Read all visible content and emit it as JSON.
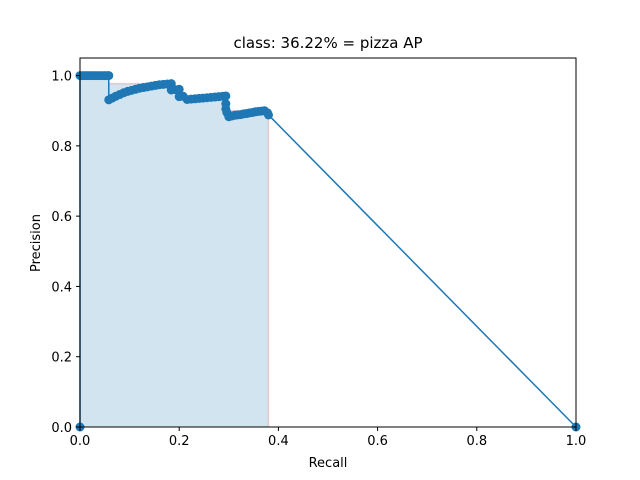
{
  "chart_data": {
    "type": "line",
    "title": "class: 36.22% = pizza AP",
    "xlabel": "Recall",
    "ylabel": "Precision",
    "xlim": [
      0,
      1
    ],
    "ylim": [
      0,
      1.05
    ],
    "grid": false,
    "xticks": [
      0.0,
      0.2,
      0.4,
      0.6,
      0.8,
      1.0
    ],
    "yticks": [
      0.0,
      0.2,
      0.4,
      0.6,
      0.8,
      1.0
    ],
    "xtick_labels": [
      "0.0",
      "0.2",
      "0.4",
      "0.6",
      "0.8",
      "1.0"
    ],
    "ytick_labels": [
      "0.0",
      "0.2",
      "0.4",
      "0.6",
      "0.8",
      "1.0"
    ],
    "colors": {
      "line": "#1f77b4",
      "fill": "#1f77b4",
      "envelope": "#d62728"
    },
    "series": [
      {
        "points": [
          [
            0.0,
            0.0
          ],
          [
            0.0,
            1.0
          ],
          [
            0.005,
            1.0
          ],
          [
            0.01,
            1.0
          ],
          [
            0.015,
            1.0
          ],
          [
            0.02,
            1.0
          ],
          [
            0.025,
            1.0
          ],
          [
            0.03,
            1.0
          ],
          [
            0.035,
            1.0
          ],
          [
            0.04,
            1.0
          ],
          [
            0.045,
            1.0
          ],
          [
            0.05,
            1.0
          ],
          [
            0.055,
            1.0
          ],
          [
            0.058,
            1.0
          ],
          [
            0.058,
            0.931
          ],
          [
            0.065,
            0.936
          ],
          [
            0.072,
            0.941
          ],
          [
            0.08,
            0.946
          ],
          [
            0.088,
            0.951
          ],
          [
            0.096,
            0.955
          ],
          [
            0.104,
            0.958
          ],
          [
            0.112,
            0.961
          ],
          [
            0.12,
            0.964
          ],
          [
            0.128,
            0.966
          ],
          [
            0.136,
            0.968
          ],
          [
            0.144,
            0.97
          ],
          [
            0.152,
            0.972
          ],
          [
            0.16,
            0.974
          ],
          [
            0.168,
            0.975
          ],
          [
            0.176,
            0.976
          ],
          [
            0.184,
            0.977
          ],
          [
            0.184,
            0.959
          ],
          [
            0.192,
            0.96
          ],
          [
            0.2,
            0.961
          ],
          [
            0.2,
            0.94
          ],
          [
            0.208,
            0.941
          ],
          [
            0.216,
            0.932
          ],
          [
            0.224,
            0.933
          ],
          [
            0.232,
            0.934
          ],
          [
            0.24,
            0.935
          ],
          [
            0.248,
            0.936
          ],
          [
            0.256,
            0.937
          ],
          [
            0.264,
            0.938
          ],
          [
            0.272,
            0.939
          ],
          [
            0.28,
            0.94
          ],
          [
            0.288,
            0.941
          ],
          [
            0.294,
            0.942
          ],
          [
            0.294,
            0.92
          ],
          [
            0.294,
            0.905
          ],
          [
            0.296,
            0.895
          ],
          [
            0.3,
            0.883
          ],
          [
            0.306,
            0.885
          ],
          [
            0.312,
            0.887
          ],
          [
            0.318,
            0.888
          ],
          [
            0.324,
            0.889
          ],
          [
            0.33,
            0.891
          ],
          [
            0.336,
            0.892
          ],
          [
            0.342,
            0.894
          ],
          [
            0.348,
            0.895
          ],
          [
            0.354,
            0.897
          ],
          [
            0.36,
            0.898
          ],
          [
            0.366,
            0.899
          ],
          [
            0.372,
            0.9
          ],
          [
            0.378,
            0.894
          ],
          [
            0.38,
            0.888
          ],
          [
            1.0,
            0.0
          ]
        ]
      }
    ],
    "area": {
      "points": [
        [
          0.0,
          1.0
        ],
        [
          0.058,
          1.0
        ],
        [
          0.058,
          0.977
        ],
        [
          0.184,
          0.977
        ],
        [
          0.184,
          0.961
        ],
        [
          0.2,
          0.961
        ],
        [
          0.2,
          0.942
        ],
        [
          0.294,
          0.942
        ],
        [
          0.294,
          0.9
        ],
        [
          0.378,
          0.9
        ],
        [
          0.38,
          0.888
        ],
        [
          0.38,
          0.0
        ]
      ]
    }
  }
}
